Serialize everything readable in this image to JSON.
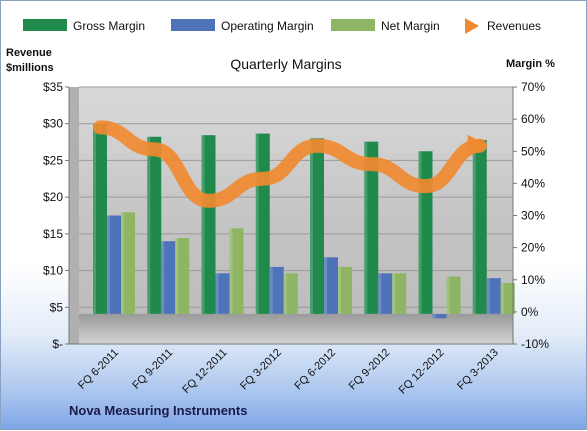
{
  "chart_data": {
    "type": "bar",
    "title": "Quarterly Margins",
    "ylabel_left": "Revenue\n$millions",
    "ylabel_right": "Margin %",
    "ylim_left": [
      0,
      35
    ],
    "ylim_right": [
      -10,
      70
    ],
    "yticks_left": [
      "$-",
      "$5",
      "$10",
      "$15",
      "$20",
      "$25",
      "$30",
      "$35"
    ],
    "yticks_right": [
      "-10%",
      "0%",
      "10%",
      "20%",
      "30%",
      "40%",
      "50%",
      "60%",
      "70%"
    ],
    "legend_position": "top",
    "grid": true,
    "categories": [
      "FQ 6-2011",
      "FQ 9-2011",
      "FQ 12-2011",
      "FQ 3-2012",
      "FQ 6-2012",
      "FQ 9-2012",
      "FQ 12-2012",
      "FQ 3-2013"
    ],
    "series": [
      {
        "name": "Gross Margin",
        "type": "bar",
        "axis": "right",
        "color": "#1f8a4c",
        "values": [
          58.5,
          54.5,
          55,
          55.5,
          54,
          53,
          50,
          53.5
        ]
      },
      {
        "name": "Operating Margin",
        "type": "bar",
        "axis": "right",
        "color": "#4f73b8",
        "values": [
          30,
          22,
          12,
          14,
          17,
          12,
          -2,
          10.5
        ]
      },
      {
        "name": "Net Margin",
        "type": "bar",
        "axis": "right",
        "color": "#8db563",
        "values": [
          31,
          23,
          26,
          12,
          14,
          12,
          11,
          9
        ]
      },
      {
        "name": "Revenues",
        "type": "line",
        "axis": "left",
        "color": "#f08a30",
        "values": [
          29.5,
          26.5,
          19.5,
          22.5,
          27,
          24.5,
          21.5,
          27
        ]
      }
    ]
  },
  "footer": {
    "company": "Nova Measuring Instruments"
  }
}
